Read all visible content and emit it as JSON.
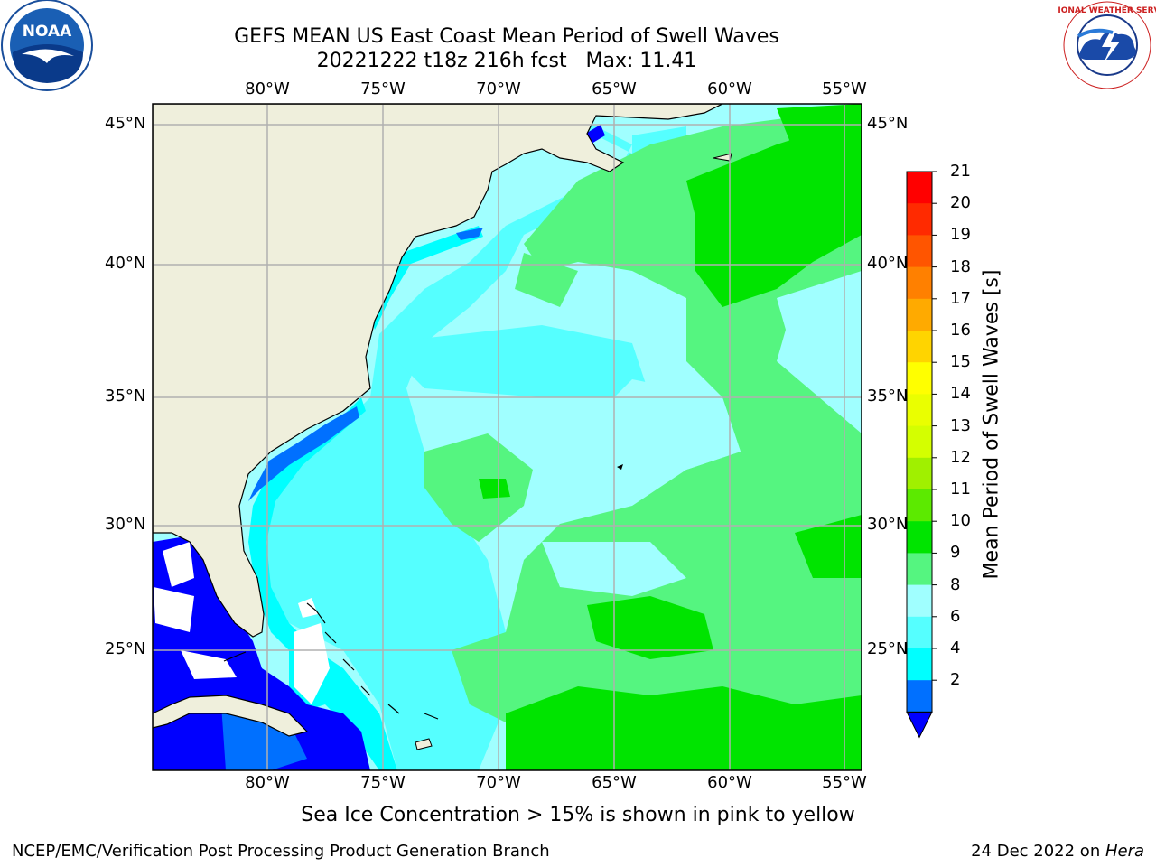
{
  "header": {
    "title": "GEFS MEAN US East Coast Mean Period of Swell Waves",
    "subtitle": "20221222 t18z 216h fcst   Max: 11.41"
  },
  "logos": {
    "left": "NOAA",
    "right": "NATIONAL WEATHER SERVICE"
  },
  "map": {
    "lon_labels": [
      "80°W",
      "75°W",
      "70°W",
      "65°W",
      "60°W",
      "55°W"
    ],
    "lat_labels": [
      "45°N",
      "40°N",
      "35°N",
      "30°N",
      "25°N"
    ],
    "lon_range": [
      -85,
      -54.2
    ],
    "lat_range": [
      20.5,
      46
    ]
  },
  "colorbar": {
    "title": "Mean Period of Swell Waves [s]",
    "labels": [
      "21",
      "20",
      "19",
      "18",
      "17",
      "16",
      "15",
      "14",
      "13",
      "12",
      "11",
      "10",
      "9",
      "8",
      "6",
      "4",
      "2"
    ],
    "colors": [
      "#ff0000",
      "#ff2a00",
      "#ff5500",
      "#ff8000",
      "#ffaa00",
      "#ffd400",
      "#ffff00",
      "#eaff00",
      "#d4ff00",
      "#a0f000",
      "#5cea00",
      "#00e400",
      "#55f580",
      "#a0ffff",
      "#55ffff",
      "#00ffff",
      "#0070ff"
    ],
    "under_color": "#0000ff"
  },
  "notes": {
    "sea_ice": "Sea Ice Concentration > 15% is shown in pink to yellow",
    "footer_left": "NCEP/EMC/Verification Post Processing Product Generation Branch",
    "footer_right_date": "24 Dec 2022 on ",
    "footer_right_machine": "Hera"
  }
}
